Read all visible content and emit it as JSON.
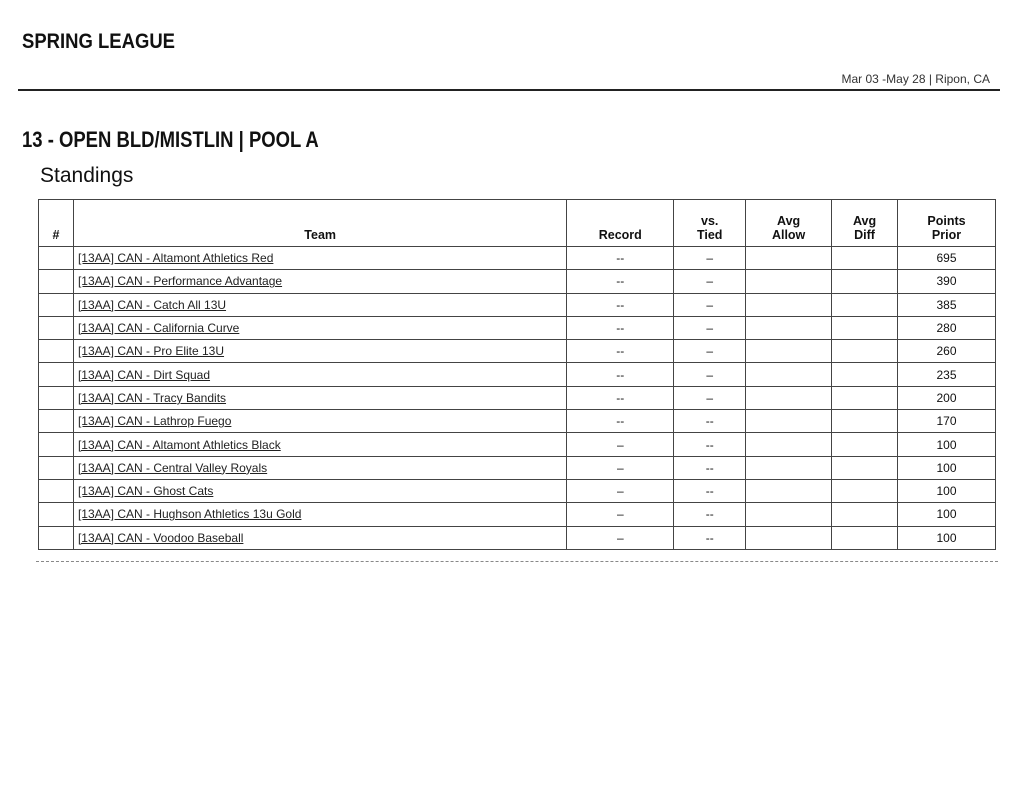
{
  "header": {
    "title": "SPRING LEAGUE",
    "subtitle": "Mar 03 -May 28 | Ripon, CA"
  },
  "section": {
    "title": "13 - OPEN BLD/MISTLIN | POOL A",
    "subtitle": "Standings"
  },
  "table": {
    "columns": [
      "#",
      "Team",
      "Record",
      "vs.\nTied",
      "Avg\nAllow",
      "Avg\nDiff",
      "Points\nPrior"
    ],
    "rows": [
      {
        "rank": "",
        "team": "[13AA] CAN - Altamont Athletics Red",
        "record": "--",
        "vs_tied": "–",
        "avg_allow": "",
        "avg_diff": "",
        "points_prior": "695"
      },
      {
        "rank": "",
        "team": "[13AA] CAN - Performance Advantage",
        "record": "--",
        "vs_tied": "–",
        "avg_allow": "",
        "avg_diff": "",
        "points_prior": "390"
      },
      {
        "rank": "",
        "team": "[13AA] CAN - Catch All 13U",
        "record": "--",
        "vs_tied": "–",
        "avg_allow": "",
        "avg_diff": "",
        "points_prior": "385"
      },
      {
        "rank": "",
        "team": "[13AA] CAN - California Curve",
        "record": "--",
        "vs_tied": "–",
        "avg_allow": "",
        "avg_diff": "",
        "points_prior": "280"
      },
      {
        "rank": "",
        "team": "[13AA] CAN - Pro Elite 13U",
        "record": "--",
        "vs_tied": "–",
        "avg_allow": "",
        "avg_diff": "",
        "points_prior": "260"
      },
      {
        "rank": "",
        "team": "[13AA] CAN - Dirt Squad",
        "record": "--",
        "vs_tied": "–",
        "avg_allow": "",
        "avg_diff": "",
        "points_prior": "235"
      },
      {
        "rank": "",
        "team": "[13AA] CAN - Tracy Bandits",
        "record": "--",
        "vs_tied": "–",
        "avg_allow": "",
        "avg_diff": "",
        "points_prior": "200"
      },
      {
        "rank": "",
        "team": "[13AA] CAN - Lathrop Fuego",
        "record": "--",
        "vs_tied": "--",
        "avg_allow": "",
        "avg_diff": "",
        "points_prior": "170"
      },
      {
        "rank": "",
        "team": "[13AA] CAN - Altamont Athletics Black",
        "record": "–",
        "vs_tied": "--",
        "avg_allow": "",
        "avg_diff": "",
        "points_prior": "100"
      },
      {
        "rank": "",
        "team": "[13AA] CAN - Central Valley Royals",
        "record": "–",
        "vs_tied": "--",
        "avg_allow": "",
        "avg_diff": "",
        "points_prior": "100"
      },
      {
        "rank": "",
        "team": "[13AA] CAN - Ghost Cats",
        "record": "–",
        "vs_tied": "--",
        "avg_allow": "",
        "avg_diff": "",
        "points_prior": "100"
      },
      {
        "rank": "",
        "team": "[13AA] CAN - Hughson Athletics 13u Gold",
        "record": "–",
        "vs_tied": "--",
        "avg_allow": "",
        "avg_diff": "",
        "points_prior": "100"
      },
      {
        "rank": "",
        "team": "[13AA] CAN - Voodoo Baseball",
        "record": "–",
        "vs_tied": "--",
        "avg_allow": "",
        "avg_diff": "",
        "points_prior": "100"
      }
    ]
  }
}
